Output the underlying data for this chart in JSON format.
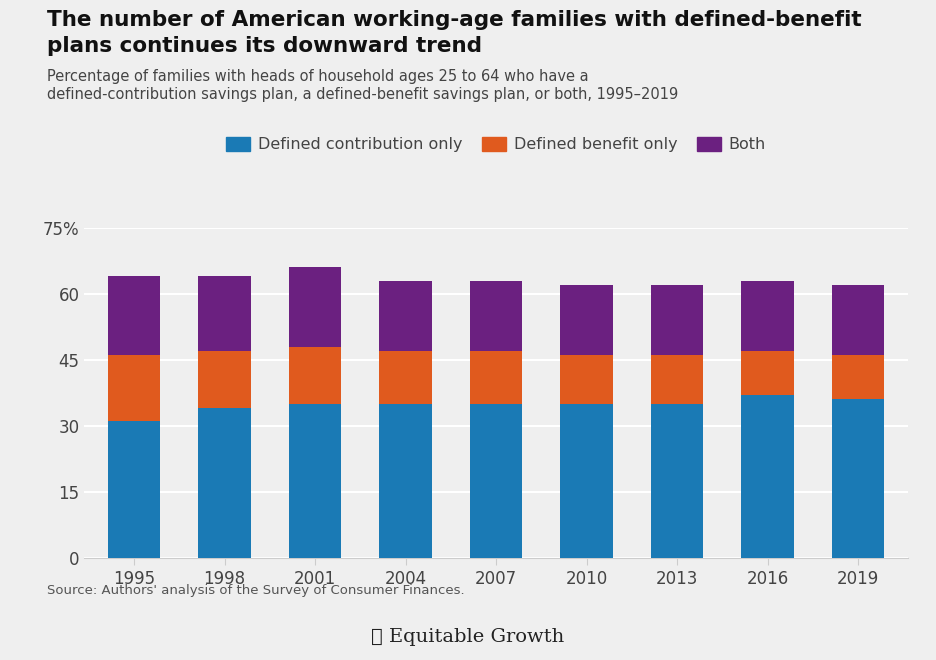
{
  "years": [
    "1995",
    "1998",
    "2001",
    "2004",
    "2007",
    "2010",
    "2013",
    "2016",
    "2019"
  ],
  "defined_contribution_only": [
    31,
    34,
    35,
    35,
    35,
    35,
    35,
    37,
    36
  ],
  "defined_benefit_only": [
    15,
    13,
    13,
    12,
    12,
    11,
    11,
    10,
    10
  ],
  "both": [
    18,
    17,
    18,
    16,
    16,
    16,
    16,
    16,
    16
  ],
  "title_line1": "The number of American working-age families with defined-benefit",
  "title_line2": "plans continues its downward trend",
  "subtitle": "Percentage of families with heads of household ages 25 to 64 who have a\ndefined-contribution savings plan, a defined-benefit savings plan, or both, 1995–2019",
  "legend_labels": [
    "Defined contribution only",
    "Defined benefit only",
    "Both"
  ],
  "ytick_labels": [
    "0",
    "15",
    "30",
    "45",
    "60",
    "75%"
  ],
  "ytick_values": [
    0,
    15,
    30,
    45,
    60,
    75
  ],
  "source": "Source: Authors' analysis of the Survey of Consumer Finances.",
  "background_color": "#efefef",
  "bar_color_dc": "#1a7ab5",
  "bar_color_db": "#e05a1e",
  "bar_color_both": "#6b2080",
  "grid_color": "#ffffff",
  "spine_color": "#cccccc",
  "title_color": "#111111",
  "subtitle_color": "#444444",
  "tick_color": "#444444",
  "source_color": "#555555",
  "logo_color": "#222222"
}
